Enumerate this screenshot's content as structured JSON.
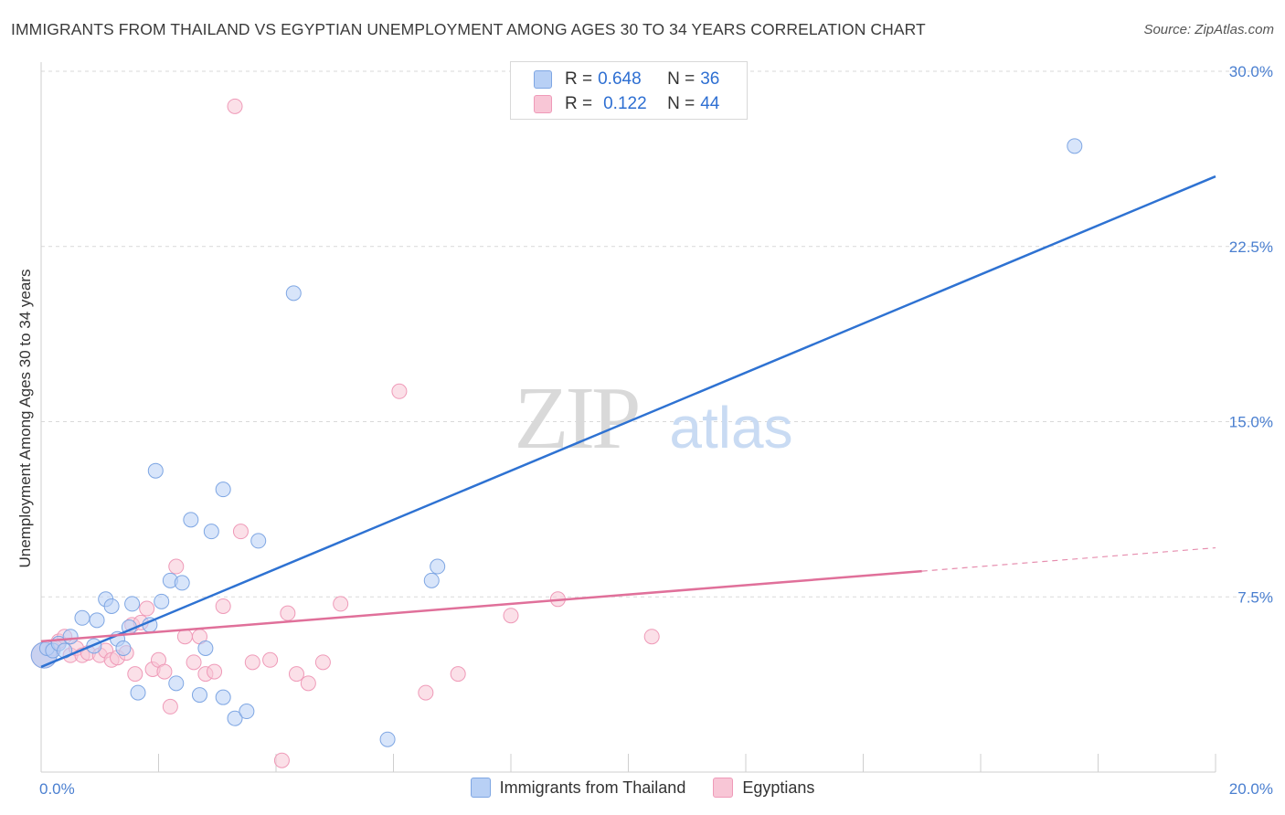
{
  "title": "IMMIGRANTS FROM THAILAND VS EGYPTIAN UNEMPLOYMENT AMONG AGES 30 TO 34 YEARS CORRELATION CHART",
  "source": "Source: ZipAtlas.com",
  "watermark": {
    "zip": "ZIP",
    "atlas": "atlas"
  },
  "legend": {
    "r_label": "R =",
    "n_label": "N =",
    "series1": {
      "r": "0.648",
      "n": "36"
    },
    "series2": {
      "r": "0.122",
      "n": "44"
    }
  },
  "colors": {
    "blue_fill": "#b8d0f5",
    "blue_stroke": "#7ea6e3",
    "blue_line": "#2e72d2",
    "pink_fill": "#f8c6d6",
    "pink_stroke": "#ef9ab8",
    "pink_line": "#e0709a",
    "tick_text": "#4a7fd0",
    "grid": "#d9d9d9"
  },
  "chart_data": {
    "type": "scatter",
    "title": "IMMIGRANTS FROM THAILAND VS EGYPTIAN UNEMPLOYMENT AMONG AGES 30 TO 34 YEARS CORRELATION CHART",
    "xlabel": "",
    "ylabel": "Unemployment Among Ages 30 to 34 years",
    "xlim": [
      0,
      20
    ],
    "ylim": [
      0,
      30
    ],
    "x_tick_labels": [
      "0.0%",
      "20.0%"
    ],
    "y_ticks": [
      7.5,
      15.0,
      22.5,
      30.0
    ],
    "y_tick_labels": [
      "7.5%",
      "15.0%",
      "22.5%",
      "30.0%"
    ],
    "series": [
      {
        "name": "Immigrants from Thailand",
        "color": "blue",
        "R": 0.648,
        "N": 36,
        "trend": {
          "x": [
            0,
            20
          ],
          "y": [
            4.5,
            25.5
          ],
          "dashed_from": null
        },
        "points": [
          [
            0.05,
            5.0
          ],
          [
            0.1,
            5.3
          ],
          [
            0.2,
            5.2
          ],
          [
            0.3,
            5.5
          ],
          [
            0.4,
            5.2
          ],
          [
            0.5,
            5.8
          ],
          [
            0.7,
            6.6
          ],
          [
            0.9,
            5.4
          ],
          [
            0.95,
            6.5
          ],
          [
            1.1,
            7.4
          ],
          [
            1.2,
            7.1
          ],
          [
            1.3,
            5.7
          ],
          [
            1.4,
            5.3
          ],
          [
            1.5,
            6.2
          ],
          [
            1.55,
            7.2
          ],
          [
            1.65,
            3.4
          ],
          [
            1.85,
            6.3
          ],
          [
            1.95,
            12.9
          ],
          [
            2.05,
            7.3
          ],
          [
            2.2,
            8.2
          ],
          [
            2.3,
            3.8
          ],
          [
            2.4,
            8.1
          ],
          [
            2.55,
            10.8
          ],
          [
            2.7,
            3.3
          ],
          [
            2.8,
            5.3
          ],
          [
            2.9,
            10.3
          ],
          [
            3.1,
            3.2
          ],
          [
            3.1,
            12.1
          ],
          [
            3.3,
            2.3
          ],
          [
            3.5,
            2.6
          ],
          [
            3.7,
            9.9
          ],
          [
            4.3,
            20.5
          ],
          [
            5.9,
            1.4
          ],
          [
            6.65,
            8.2
          ],
          [
            6.75,
            8.8
          ],
          [
            17.6,
            26.8
          ]
        ]
      },
      {
        "name": "Egyptians",
        "color": "pink",
        "R": 0.122,
        "N": 44,
        "trend": {
          "x": [
            0,
            20
          ],
          "y": [
            5.6,
            9.6
          ],
          "dashed_from": 15.0
        },
        "points": [
          [
            0.05,
            5.0
          ],
          [
            0.2,
            5.3
          ],
          [
            0.3,
            5.6
          ],
          [
            0.4,
            5.8
          ],
          [
            0.5,
            5.0
          ],
          [
            0.6,
            5.3
          ],
          [
            0.7,
            5.0
          ],
          [
            0.8,
            5.1
          ],
          [
            1.0,
            5.0
          ],
          [
            1.1,
            5.2
          ],
          [
            1.2,
            4.8
          ],
          [
            1.3,
            4.9
          ],
          [
            1.45,
            5.1
          ],
          [
            1.55,
            6.3
          ],
          [
            1.6,
            4.2
          ],
          [
            1.7,
            6.4
          ],
          [
            1.8,
            7.0
          ],
          [
            1.9,
            4.4
          ],
          [
            2.0,
            4.8
          ],
          [
            2.1,
            4.3
          ],
          [
            2.2,
            2.8
          ],
          [
            2.3,
            8.8
          ],
          [
            2.45,
            5.8
          ],
          [
            2.6,
            4.7
          ],
          [
            2.7,
            5.8
          ],
          [
            2.8,
            4.2
          ],
          [
            2.95,
            4.3
          ],
          [
            3.1,
            7.1
          ],
          [
            3.4,
            10.3
          ],
          [
            3.6,
            4.7
          ],
          [
            3.9,
            4.8
          ],
          [
            4.1,
            0.5
          ],
          [
            4.2,
            6.8
          ],
          [
            4.35,
            4.2
          ],
          [
            4.55,
            3.8
          ],
          [
            4.8,
            4.7
          ],
          [
            5.1,
            7.2
          ],
          [
            3.3,
            28.5
          ],
          [
            6.1,
            16.3
          ],
          [
            6.55,
            3.4
          ],
          [
            7.1,
            4.2
          ],
          [
            8.0,
            6.7
          ],
          [
            8.8,
            7.4
          ],
          [
            10.4,
            5.8
          ]
        ]
      }
    ],
    "bottom_legend": [
      "Immigrants from Thailand",
      "Egyptians"
    ]
  }
}
